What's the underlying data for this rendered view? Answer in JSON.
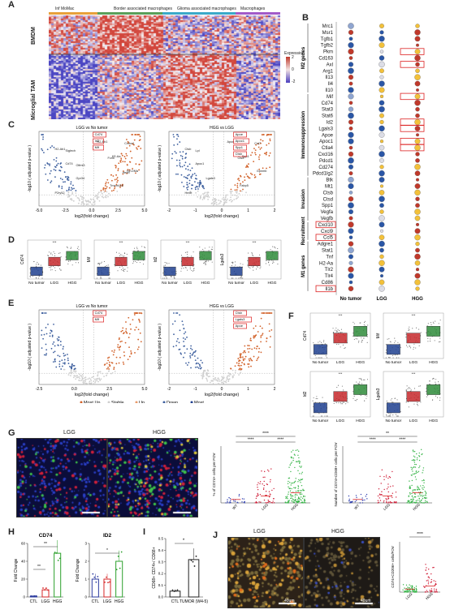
{
  "panel_labels": {
    "A": "A",
    "B": "B",
    "C": "C",
    "D": "D",
    "E": "E",
    "F": "F",
    "G": "G",
    "H": "H",
    "I": "I",
    "J": "J"
  },
  "heatmap": {
    "column_groups": [
      {
        "label": "Inf MoMac",
        "color": "#e8a13a"
      },
      {
        "label": "Border associated macrophages",
        "color": "#5aa05a"
      },
      {
        "label": "Glioma associated macrophages",
        "color": "#3aa9c9"
      },
      {
        "label": "Macrophages",
        "color": "#a25ac9"
      }
    ],
    "row_groups": [
      {
        "label": "BMDM"
      },
      {
        "label": "Microglial TAM"
      }
    ],
    "legend_title": "Expression",
    "legend_ticks": [
      "2",
      "1",
      "0",
      "-1",
      "-2"
    ]
  },
  "dotplot": {
    "categories": [
      "No tumor",
      "LGG",
      "HGG"
    ],
    "groups": [
      {
        "label": "M2 genes"
      },
      {
        "label": "Immunosuppression"
      },
      {
        "label": "Invasion"
      },
      {
        "label": "Recruitment"
      },
      {
        "label": "M1 genes"
      }
    ],
    "genes": [
      "Mrc1",
      "Msr1",
      "Tgfb1",
      "Tgfb2",
      "Pkm",
      "Cd163",
      "Axl",
      "Arg1",
      "Il13",
      "Il4",
      "Il10",
      "Mif",
      "Cd74",
      "Stat3",
      "Stat6",
      "Id2",
      "Lgals3",
      "Apoe",
      "Apoc1",
      "Ctla4",
      "Cxcl16",
      "Pdcd1",
      "Cd274",
      "Pdcd1lg2",
      "Btk",
      "Mt1",
      "Ctsb",
      "Ctsd",
      "Spp1",
      "Vegfa",
      "Vegfb",
      "Cxcl10",
      "Cxcl9",
      "Ccl5",
      "Adgre1",
      "Stat1",
      "Tnf",
      "H2-Aa",
      "Tlr2",
      "Tlr4",
      "Cd86",
      "Il1b"
    ],
    "highlighted_genes": [
      "Pkm",
      "Axl",
      "Mif",
      "Id2",
      "Lgals3",
      "Ctla4",
      "Apoc1",
      "Cxcl10",
      "Ccl5",
      "Il1b"
    ],
    "legend_proportion_title": "proportion",
    "legend_proportion": [
      "0.25",
      "0.50",
      "0.75",
      "1.00"
    ],
    "legend_expression_title": "expression",
    "legend_expression": [
      "1.0",
      "0.5",
      "0.0",
      "-0.5",
      "-1.0"
    ]
  },
  "volcano_C": {
    "left_title": "LGG vs No tumor",
    "right_title": "HGG vs LGG",
    "xlabel": "log2(fold change)",
    "ylabel": "-log10 ( adjusted p-value )",
    "left_xticks": [
      "-5.0",
      "-2.5",
      "0.0",
      "2.5",
      "5.0"
    ],
    "right_xticks": [
      "-2",
      "-1",
      "0",
      "1",
      "2"
    ],
    "legend": [
      "Most Up",
      "Stable",
      "Up",
      "Down",
      "Most"
    ],
    "left_boxed": [
      "Cd74",
      "Id2",
      "Mif"
    ],
    "right_boxed": [
      "Apoe",
      "Apoc1",
      "Spp1",
      "Ctsb"
    ],
    "left_genes": [
      "H2-Eb1",
      "H2-Ab1",
      "H2-Aa",
      "Cd74",
      "H2-DMa",
      "Gpr34",
      "Tmem119",
      "P2ry12",
      "Cx3cr1",
      "Siglech",
      "Fcrls",
      "Olfml3",
      "Hexb"
    ],
    "right_genes": [
      "Apoe",
      "Ctsb",
      "Spp1",
      "Apoc1",
      "Gpnmb",
      "Lgals3",
      "Fabp5",
      "Hexb",
      "Cst7",
      "Lpl",
      "Ctsd"
    ]
  },
  "boxplot_D": {
    "categories": [
      "No tumor",
      "LGG",
      "HGG"
    ],
    "plots": [
      {
        "ylabel": "Cd74"
      },
      {
        "ylabel": "Mif"
      },
      {
        "ylabel": "Id2"
      },
      {
        "ylabel": "Lgals3"
      }
    ],
    "colors": [
      "#1f3f8f",
      "#c6282b",
      "#2e8b3a"
    ]
  },
  "volcano_E": {
    "left_title": "LGG vs No tumor",
    "right_title": "HGG vs LGG",
    "xlabel": "log2(fold change)",
    "ylabel": "-log10 ( adjusted p-value )",
    "left_xticks": [
      "-2.5",
      "0.0",
      "2.5",
      "5.0"
    ],
    "right_xticks": [
      "-2",
      "-1",
      "0",
      "1",
      "2"
    ],
    "legend": [
      "Most Up",
      "Stable",
      "Up",
      "Down",
      "Most"
    ],
    "left_boxed": [
      "Cd74",
      "Mif"
    ],
    "right_boxed": [
      "Ctsb",
      "Lgals3",
      "Apoe"
    ]
  },
  "boxplot_F": {
    "categories": [
      "No tumor",
      "LGG",
      "HGG"
    ],
    "plots": [
      {
        "ylabel": "Cd74"
      },
      {
        "ylabel": "Mif"
      },
      {
        "ylabel": "Id2"
      },
      {
        "ylabel": "Lgals3"
      }
    ]
  },
  "panel_G": {
    "image_labels": [
      "LGG",
      "HGG"
    ],
    "chart1_ylabel": "% of CD74+ cells per FOV",
    "chart2_ylabel": "Number of CD74+CD68+ cells per FOV",
    "categories": [
      "WT",
      "LGG",
      "HGG"
    ],
    "sig": [
      "****",
      "****",
      "****",
      "**",
      "****",
      "****"
    ]
  },
  "panel_H": {
    "charts": [
      {
        "title": "CD74",
        "ylabel": "Fold Change",
        "categories": [
          "CTL",
          "LGG",
          "HGG"
        ],
        "values": [
          1,
          8,
          49
        ],
        "ymax": 60,
        "yticks": [
          "0",
          "20",
          "40",
          "60"
        ],
        "sig": [
          "**",
          "**"
        ],
        "colors": [
          "#2b3a9e",
          "#d62728",
          "#2ca02c"
        ]
      },
      {
        "title": "ID2",
        "ylabel": "Fold Change",
        "categories": [
          "CTL",
          "LGG",
          "HGG"
        ],
        "values": [
          1,
          1,
          2
        ],
        "ymax": 3,
        "yticks": [
          "0",
          "1",
          "2",
          "3"
        ],
        "sig": [
          "*"
        ],
        "colors": [
          "#2b3a9e",
          "#d62728",
          "#2ca02c"
        ]
      }
    ]
  },
  "panel_I": {
    "ylabel": "CD68+ CD74+/ CD68+",
    "categories": [
      "CTL",
      "TUMOR (W4-5)"
    ],
    "values": [
      0.05,
      0.32
    ],
    "ymax": 0.5,
    "yticks": [
      "0.0",
      "0.1",
      "0.2",
      "0.3",
      "0.4",
      "0.5"
    ],
    "sig": "*"
  },
  "panel_J": {
    "image_labels": [
      "LGG",
      "HGG"
    ],
    "scalebars": [
      "40um",
      "40um"
    ],
    "chart_ylabel": "CD74+CD206+ cells/FOV",
    "categories": [
      "LGG",
      "HGG"
    ],
    "sig": "****"
  },
  "chart_data": [
    {
      "type": "bar",
      "title": "CD74",
      "categories": [
        "CTL",
        "LGG",
        "HGG"
      ],
      "values": [
        1,
        8,
        49
      ],
      "ylabel": "Fold Change",
      "ylim": [
        0,
        60
      ]
    },
    {
      "type": "bar",
      "title": "ID2",
      "categories": [
        "CTL",
        "LGG",
        "HGG"
      ],
      "values": [
        1,
        1,
        2
      ],
      "ylabel": "Fold Change",
      "ylim": [
        0,
        3
      ]
    },
    {
      "type": "bar",
      "title": "",
      "categories": [
        "CTL",
        "TUMOR (W4-5)"
      ],
      "values": [
        0.05,
        0.32
      ],
      "ylabel": "CD68+ CD74+/ CD68+",
      "ylim": [
        0,
        0.5
      ]
    }
  ]
}
